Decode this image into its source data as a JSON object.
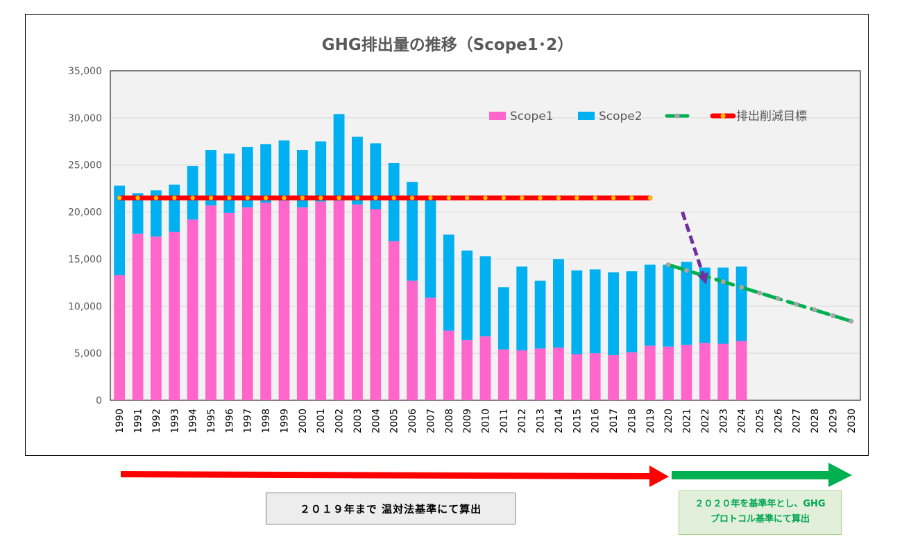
{
  "chart_data": {
    "type": "bar",
    "title": "GHG排出量の推移（Scope1･2）",
    "xlabel": "",
    "ylabel": "",
    "ylim": [
      0,
      35000
    ],
    "y_ticks": [
      0,
      5000,
      10000,
      15000,
      20000,
      25000,
      30000,
      35000
    ],
    "y_tick_labels": [
      "0",
      "5,000",
      "10,000",
      "15,000",
      "20,000",
      "25,000",
      "30,000",
      "35,000"
    ],
    "categories": [
      "1990",
      "1991",
      "1992",
      "1993",
      "1994",
      "1995",
      "1996",
      "1997",
      "1998",
      "1999",
      "2000",
      "2001",
      "2002",
      "2003",
      "2004",
      "2005",
      "2006",
      "2007",
      "2008",
      "2009",
      "2010",
      "2011",
      "2012",
      "2013",
      "2014",
      "2015",
      "2016",
      "2017",
      "2018",
      "2019",
      "2020",
      "2021",
      "2022",
      "2023",
      "2024",
      "2025",
      "2026",
      "2027",
      "2028",
      "2029",
      "2030"
    ],
    "stacked": true,
    "grid": true,
    "legend_position": "top-right",
    "series": [
      {
        "name": "Scope1",
        "kind": "bar",
        "color": "#ff66cc",
        "values": [
          13300,
          17700,
          17400,
          17900,
          19200,
          20700,
          19900,
          20500,
          21000,
          21200,
          20500,
          21100,
          21200,
          20800,
          20300,
          16900,
          12700,
          10900,
          7400,
          6400,
          6800,
          5400,
          5300,
          5500,
          5600,
          4900,
          5000,
          4800,
          5100,
          5800,
          5700,
          5900,
          6100,
          6000,
          6300,
          null,
          null,
          null,
          null,
          null,
          null
        ]
      },
      {
        "name": "Scope2",
        "kind": "bar",
        "color": "#00b0f0",
        "values": [
          9500,
          4300,
          4900,
          5000,
          5700,
          5900,
          6300,
          6400,
          6200,
          6400,
          6100,
          6400,
          9200,
          7200,
          7000,
          8300,
          10500,
          10500,
          10200,
          9500,
          8500,
          6600,
          8900,
          7200,
          9400,
          8900,
          8900,
          8800,
          8600,
          8600,
          8700,
          8800,
          8000,
          8100,
          7900,
          null,
          null,
          null,
          null,
          null,
          null
        ]
      },
      {
        "name": "",
        "kind": "line",
        "color": "#00b050",
        "marker_color": "#a6a6a6",
        "values": [
          null,
          null,
          null,
          null,
          null,
          null,
          null,
          null,
          null,
          null,
          null,
          null,
          null,
          null,
          null,
          null,
          null,
          null,
          null,
          null,
          null,
          null,
          null,
          null,
          null,
          null,
          null,
          null,
          null,
          null,
          14400,
          13800,
          13200,
          12600,
          12000,
          11400,
          10800,
          10200,
          9600,
          9000,
          8400
        ]
      },
      {
        "name": "排出削減目標",
        "kind": "line",
        "color": "#ff0000",
        "marker_color": "#ffc000",
        "values": [
          21500,
          21500,
          21500,
          21500,
          21500,
          21500,
          21500,
          21500,
          21500,
          21500,
          21500,
          21500,
          21500,
          21500,
          21500,
          21500,
          21500,
          21500,
          21500,
          21500,
          21500,
          21500,
          21500,
          21500,
          21500,
          21500,
          21500,
          21500,
          21500,
          21500,
          null,
          null,
          null,
          null,
          null,
          null,
          null,
          null,
          null,
          null,
          null
        ]
      }
    ],
    "annotations": [
      {
        "kind": "dashed-arrow",
        "color": "#7030a0",
        "from": [
          "2021",
          20000
        ],
        "to": [
          "2022",
          12300
        ]
      }
    ]
  },
  "notes": {
    "left_text": "２０１９年まで 温対法基準にて算出",
    "right_line1": "２０２０年を基準年とし、GHG",
    "right_line2": "プロトコル基準にて算出",
    "left_arrow_color": "#ff0000",
    "right_arrow_color": "#00b050"
  }
}
